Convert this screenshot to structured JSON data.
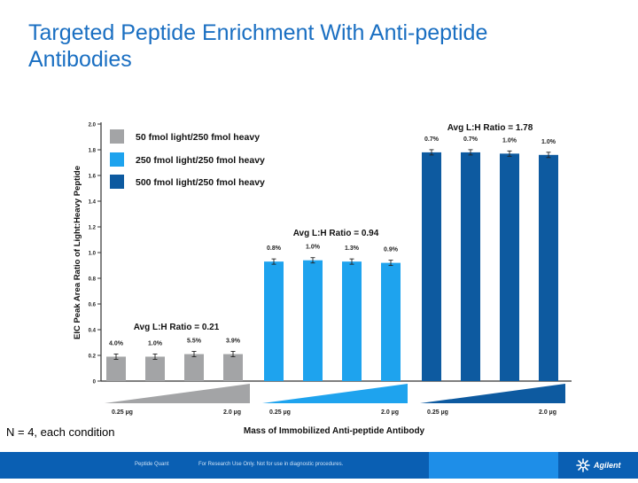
{
  "slide": {
    "title": "Targeted Peptide Enrichment With Anti-peptide Antibodies",
    "note": "N = 4, each condition"
  },
  "footer": {
    "left_text": "Peptide Quant",
    "mid_text": "For Research Use Only. Not for use in diagnostic procedures.",
    "logo_text": "Agilent"
  },
  "chart_data": {
    "type": "bar",
    "ylabel": "EIC Peak Area Ratio of Light:Heavy Peptide",
    "xlabel": "Mass of Immobilized Anti-peptide Antibody",
    "ylim": [
      0,
      2.0
    ],
    "yticks": [
      "0",
      "0.2",
      "0.4",
      "0.6",
      "0.8",
      "1.0",
      "1.2",
      "1.4",
      "1.6",
      "1.8",
      "2.0"
    ],
    "grid": false,
    "legend_position": "top-left",
    "colors": [
      "#a3a4a6",
      "#1ea3ee",
      "#0d5aa0"
    ],
    "series": [
      {
        "name": "50 fmol light/250 fmol heavy",
        "values": [
          0.19,
          0.19,
          0.21,
          0.21
        ],
        "labels": [
          "4.0%",
          "1.0%",
          "5.5%",
          "3.9%"
        ],
        "ratio_label": "Avg L:H Ratio = 0.21"
      },
      {
        "name": "250 fmol light/250 fmol heavy",
        "values": [
          0.93,
          0.94,
          0.93,
          0.92
        ],
        "labels": [
          "0.8%",
          "1.0%",
          "1.3%",
          "0.9%"
        ],
        "ratio_label": "Avg L:H Ratio = 0.94"
      },
      {
        "name": "500 fmol light/250 fmol heavy",
        "values": [
          1.78,
          1.78,
          1.77,
          1.76
        ],
        "labels": [
          "0.7%",
          "0.7%",
          "1.0%",
          "1.0%"
        ],
        "ratio_label": "Avg L:H Ratio = 1.78"
      }
    ],
    "ramp_labels": {
      "low": "0.25 µg",
      "high": "2.0 µg"
    }
  }
}
